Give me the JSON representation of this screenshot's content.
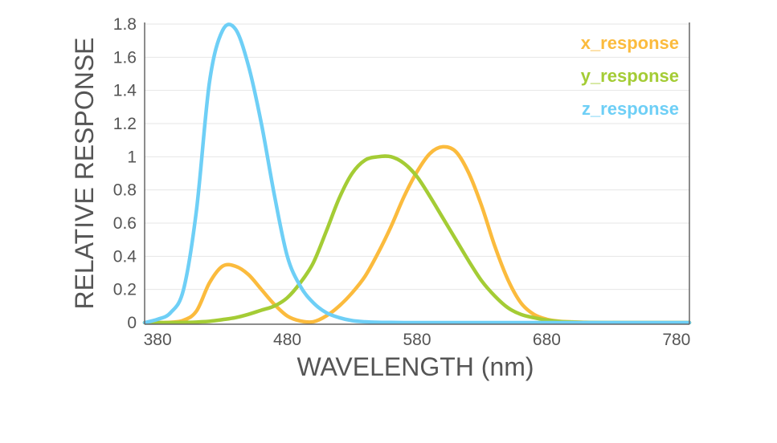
{
  "chart_data": {
    "type": "line",
    "xlabel": "WAVELENGTH (nm)",
    "ylabel": "RELATIVE RESPONSE",
    "xlim": [
      370,
      790
    ],
    "ylim": [
      0,
      1.8
    ],
    "xticks": [
      "380",
      "480",
      "580",
      "680",
      "780"
    ],
    "xtick_values": [
      380,
      480,
      580,
      680,
      780
    ],
    "yticks": [
      "0",
      "0.2",
      "0.4",
      "0.6",
      "0.8",
      "1",
      "1.2",
      "1.4",
      "1.6",
      "1.8"
    ],
    "ytick_values": [
      0,
      0.2,
      0.4,
      0.6,
      0.8,
      1.0,
      1.2,
      1.4,
      1.6,
      1.8
    ],
    "grid": "horizontal",
    "legend_position": "top-right",
    "series": [
      {
        "name": "x_response",
        "color": "#FBBB3D",
        "x": [
          370,
          380,
          390,
          400,
          410,
          420,
          430,
          440,
          450,
          460,
          470,
          480,
          490,
          500,
          510,
          520,
          530,
          540,
          550,
          560,
          570,
          580,
          590,
          600,
          610,
          620,
          630,
          640,
          650,
          660,
          670,
          680,
          690,
          700,
          710,
          720,
          740,
          780,
          790
        ],
        "values": [
          0,
          0,
          0.002,
          0.014,
          0.07,
          0.24,
          0.34,
          0.34,
          0.29,
          0.2,
          0.11,
          0.04,
          0.01,
          0.005,
          0.04,
          0.1,
          0.18,
          0.28,
          0.42,
          0.58,
          0.76,
          0.91,
          1.02,
          1.06,
          1.03,
          0.9,
          0.7,
          0.46,
          0.26,
          0.12,
          0.05,
          0.02,
          0.008,
          0.004,
          0.002,
          0,
          0,
          0,
          0
        ]
      },
      {
        "name": "y_response",
        "color": "#A4CC35",
        "x": [
          370,
          380,
          390,
          400,
          410,
          420,
          430,
          440,
          450,
          460,
          470,
          480,
          490,
          500,
          510,
          520,
          530,
          540,
          550,
          560,
          570,
          580,
          590,
          600,
          610,
          620,
          630,
          640,
          650,
          660,
          670,
          680,
          690,
          700,
          710,
          740,
          780,
          790
        ],
        "values": [
          0,
          0,
          0,
          0.001,
          0.003,
          0.008,
          0.018,
          0.03,
          0.05,
          0.075,
          0.1,
          0.15,
          0.24,
          0.36,
          0.55,
          0.75,
          0.9,
          0.98,
          1.0,
          1.0,
          0.96,
          0.88,
          0.76,
          0.63,
          0.5,
          0.37,
          0.25,
          0.16,
          0.09,
          0.05,
          0.03,
          0.015,
          0.006,
          0.003,
          0.001,
          0,
          0,
          0
        ]
      },
      {
        "name": "z_response",
        "color": "#6ECFF6",
        "x": [
          370,
          380,
          390,
          400,
          410,
          420,
          430,
          440,
          450,
          460,
          470,
          480,
          490,
          500,
          510,
          520,
          530,
          540,
          550,
          560,
          570,
          580,
          600,
          650,
          700,
          790
        ],
        "values": [
          0,
          0.02,
          0.06,
          0.2,
          0.68,
          1.45,
          1.76,
          1.77,
          1.55,
          1.2,
          0.77,
          0.4,
          0.22,
          0.12,
          0.06,
          0.03,
          0.012,
          0.005,
          0.002,
          0.001,
          0,
          0,
          0,
          0,
          0,
          0
        ]
      }
    ]
  }
}
